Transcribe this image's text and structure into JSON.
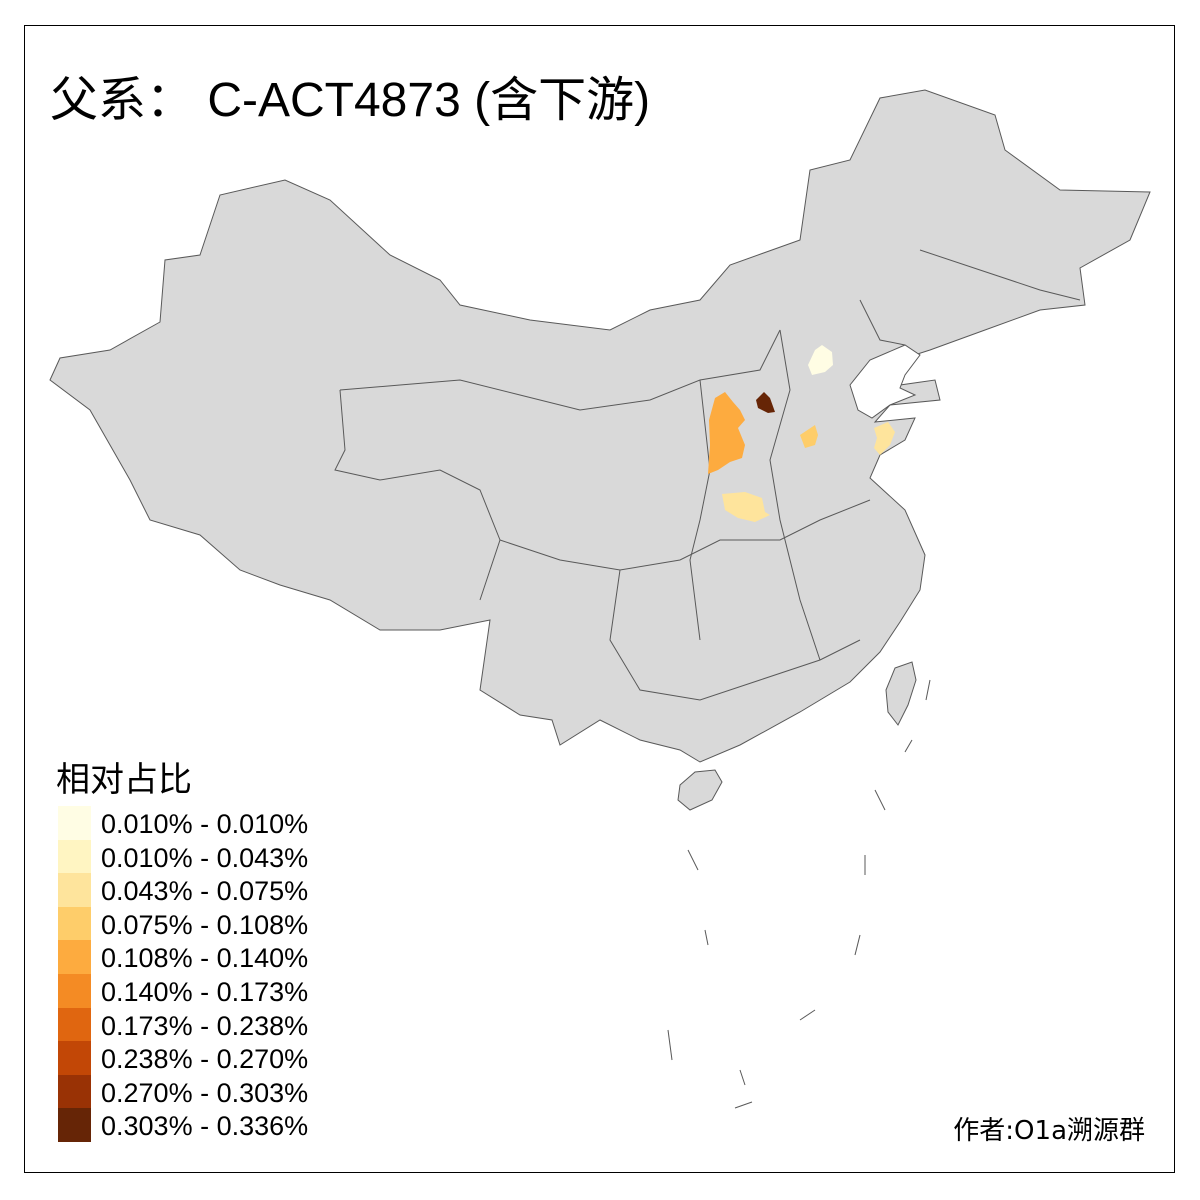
{
  "title": "父系： C-ACT4873 (含下游)",
  "legend": {
    "title": "相对占比",
    "classes": [
      {
        "label": "0.010% - 0.010%",
        "color": "#FFFDE4"
      },
      {
        "label": "0.010% - 0.043%",
        "color": "#FFF5C2"
      },
      {
        "label": "0.043% - 0.075%",
        "color": "#FEE49C"
      },
      {
        "label": "0.075% - 0.108%",
        "color": "#FECD6A"
      },
      {
        "label": "0.108% - 0.140%",
        "color": "#FDAB3F"
      },
      {
        "label": "0.140% - 0.173%",
        "color": "#F48B24"
      },
      {
        "label": "0.173% - 0.238%",
        "color": "#E06610"
      },
      {
        "label": "0.238% - 0.270%",
        "color": "#C24706"
      },
      {
        "label": "0.270% - 0.303%",
        "color": "#993205"
      },
      {
        "label": "0.303% - 0.336%",
        "color": "#662506"
      }
    ]
  },
  "base_color": "#D9D9D9",
  "border_color": "#595959",
  "highlighted_region_classes": [
    0,
    9,
    4,
    3,
    2,
    2
  ],
  "author": "作者:O1a溯源群"
}
